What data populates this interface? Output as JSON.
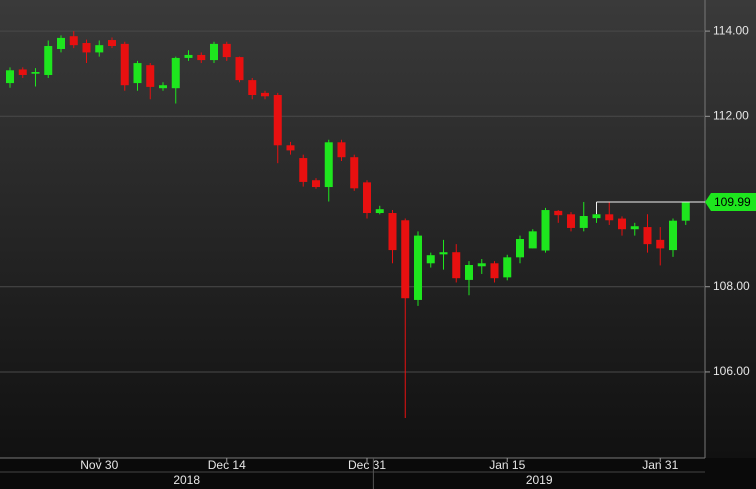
{
  "chart_data": {
    "type": "candlestick",
    "categories": [
      null,
      null,
      null,
      null,
      null,
      null,
      null,
      "Nov 30",
      null,
      null,
      null,
      null,
      null,
      null,
      null,
      null,
      null,
      "Dec 14",
      null,
      null,
      null,
      null,
      null,
      null,
      null,
      null,
      null,
      null,
      "Dec 31",
      null,
      null,
      null,
      null,
      null,
      null,
      null,
      null,
      null,
      null,
      "Jan 15",
      null,
      null,
      null,
      null,
      null,
      null,
      null,
      null,
      null,
      null,
      null,
      "Jan 31",
      null,
      null
    ],
    "years": [
      "2018",
      "2019"
    ],
    "open": [
      112.78,
      113.1,
      113.0,
      112.97,
      113.58,
      113.88,
      113.72,
      113.5,
      113.79,
      113.7,
      112.78,
      113.2,
      112.66,
      112.66,
      113.37,
      113.44,
      113.32,
      113.7,
      113.39,
      112.85,
      112.55,
      112.5,
      111.32,
      111.02,
      110.5,
      110.34,
      111.39,
      111.04,
      110.45,
      109.73,
      109.73,
      109.56,
      107.69,
      108.55,
      108.76,
      108.81,
      108.16,
      108.48,
      108.55,
      108.22,
      108.69,
      108.9,
      108.85,
      109.78,
      109.7,
      109.38,
      109.61,
      109.7,
      109.6,
      109.35,
      109.4,
      109.1,
      108.86,
      109.55
    ],
    "high": [
      113.15,
      113.15,
      113.13,
      113.78,
      113.9,
      114.0,
      113.8,
      113.78,
      113.85,
      113.75,
      113.3,
      113.25,
      112.8,
      113.4,
      113.55,
      113.5,
      113.75,
      113.75,
      113.4,
      112.9,
      112.6,
      112.55,
      111.4,
      111.1,
      110.55,
      111.45,
      111.45,
      111.1,
      110.5,
      109.9,
      109.8,
      109.6,
      109.3,
      108.8,
      109.1,
      109.0,
      108.6,
      108.65,
      108.6,
      108.75,
      109.2,
      109.35,
      109.85,
      109.8,
      109.75,
      109.99,
      109.8,
      109.99,
      109.65,
      109.5,
      109.7,
      109.4,
      109.6,
      110.0
    ],
    "low": [
      112.67,
      112.9,
      112.7,
      112.9,
      113.5,
      113.6,
      113.25,
      113.4,
      113.6,
      112.6,
      112.6,
      112.4,
      112.6,
      112.3,
      113.3,
      113.25,
      113.25,
      113.3,
      112.8,
      112.4,
      112.4,
      110.9,
      111.1,
      110.35,
      110.3,
      110.0,
      110.95,
      110.25,
      109.6,
      109.7,
      108.55,
      104.92,
      107.55,
      108.45,
      108.4,
      108.1,
      107.8,
      108.3,
      108.1,
      108.15,
      108.55,
      108.9,
      108.8,
      109.5,
      109.3,
      109.3,
      109.5,
      109.45,
      109.2,
      109.2,
      108.8,
      108.5,
      108.7,
      109.45
    ],
    "close": [
      113.08,
      112.97,
      113.04,
      113.65,
      113.84,
      113.67,
      113.5,
      113.67,
      113.65,
      112.73,
      113.25,
      112.69,
      112.73,
      113.37,
      113.44,
      113.32,
      113.7,
      113.39,
      112.85,
      112.5,
      112.47,
      111.32,
      111.2,
      110.46,
      110.34,
      111.39,
      111.04,
      110.31,
      109.73,
      109.82,
      108.86,
      107.73,
      109.2,
      108.74,
      108.81,
      108.2,
      108.51,
      108.55,
      108.2,
      108.69,
      109.12,
      109.3,
      109.8,
      109.68,
      109.38,
      109.66,
      109.7,
      109.56,
      109.35,
      109.42,
      109.0,
      108.9,
      109.55,
      109.99
    ],
    "up_color": "#1ee61e",
    "down_color": "#e81010",
    "last_price": 109.99,
    "ylim": [
      103.98,
      114.73
    ],
    "yticks": [
      {
        "value": 106,
        "label": "106.00"
      },
      {
        "value": 108,
        "label": "108.00"
      },
      {
        "value": 112,
        "label": "112.00"
      },
      {
        "value": 114,
        "label": "114.00"
      }
    ],
    "grid": true
  }
}
